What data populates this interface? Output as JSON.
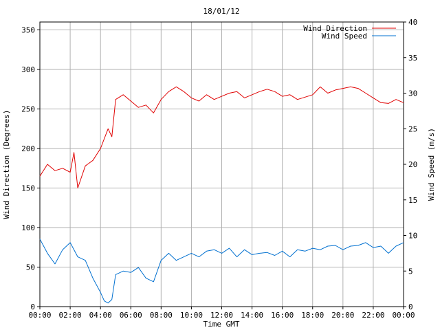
{
  "chart_data": {
    "type": "line",
    "title": "18/01/12",
    "xlabel": "Time GMT",
    "ylabel_left": "Wind Direction (Degrees)",
    "ylabel_right": "Wind Speed (m/s)",
    "grid": true,
    "legend_position": "top-right",
    "x_ticks": [
      "00:00",
      "02:00",
      "04:00",
      "06:00",
      "08:00",
      "10:00",
      "12:00",
      "14:00",
      "16:00",
      "18:00",
      "20:00",
      "22:00",
      "00:00"
    ],
    "y_left_ticks": [
      "0",
      "50",
      "100",
      "150",
      "200",
      "250",
      "300",
      "350"
    ],
    "y_right_ticks": [
      "0",
      "5",
      "10",
      "15",
      "20",
      "25",
      "30",
      "35",
      "40"
    ],
    "x_range_hours": [
      0,
      24
    ],
    "y_left_range": [
      0,
      360
    ],
    "y_right_range": [
      0,
      40
    ],
    "series": [
      {
        "name": "Wind Direction",
        "axis": "left",
        "color": "#e00000",
        "x_hours": [
          0,
          0.5,
          1,
          1.5,
          2,
          2.25,
          2.5,
          3,
          3.5,
          4,
          4.5,
          4.75,
          5,
          5.5,
          6,
          6.5,
          7,
          7.5,
          8,
          8.5,
          9,
          9.5,
          10,
          10.5,
          11,
          11.5,
          12,
          12.5,
          13,
          13.5,
          14,
          14.5,
          15,
          15.5,
          16,
          16.5,
          17,
          17.5,
          18,
          18.5,
          19,
          19.5,
          20,
          20.5,
          21,
          21.5,
          22,
          22.5,
          23,
          23.5,
          24
        ],
        "values": [
          165,
          180,
          172,
          175,
          170,
          195,
          150,
          178,
          185,
          200,
          225,
          215,
          262,
          268,
          260,
          252,
          255,
          245,
          262,
          272,
          278,
          272,
          264,
          260,
          268,
          262,
          266,
          270,
          272,
          264,
          268,
          272,
          275,
          272,
          266,
          268,
          262,
          265,
          268,
          278,
          270,
          274,
          276,
          278,
          276,
          270,
          264,
          258,
          257,
          262,
          258
        ]
      },
      {
        "name": "Wind Speed",
        "axis": "right",
        "color": "#0070d0",
        "x_hours": [
          0,
          0.5,
          1,
          1.5,
          2,
          2.5,
          3,
          3.5,
          4,
          4.25,
          4.5,
          4.75,
          5,
          5.5,
          6,
          6.5,
          7,
          7.5,
          8,
          8.5,
          9,
          9.5,
          10,
          10.5,
          11,
          11.5,
          12,
          12.5,
          13,
          13.5,
          14,
          14.5,
          15,
          15.5,
          16,
          16.5,
          17,
          17.5,
          18,
          18.5,
          19,
          19.5,
          20,
          20.5,
          21,
          21.5,
          22,
          22.5,
          23,
          23.5,
          24
        ],
        "values": [
          9.5,
          7.5,
          6,
          8,
          9,
          7,
          6.5,
          4,
          2,
          0.8,
          0.5,
          1,
          4.5,
          5,
          4.8,
          5.5,
          4,
          3.5,
          6.5,
          7.5,
          6.5,
          7,
          7.5,
          7,
          7.8,
          8,
          7.5,
          8.2,
          7,
          8,
          7.3,
          7.5,
          7.6,
          7.2,
          7.8,
          7,
          8,
          7.8,
          8.2,
          8,
          8.5,
          8.6,
          8,
          8.5,
          8.6,
          9,
          8.3,
          8.5,
          7.5,
          8.5,
          9
        ]
      }
    ]
  }
}
